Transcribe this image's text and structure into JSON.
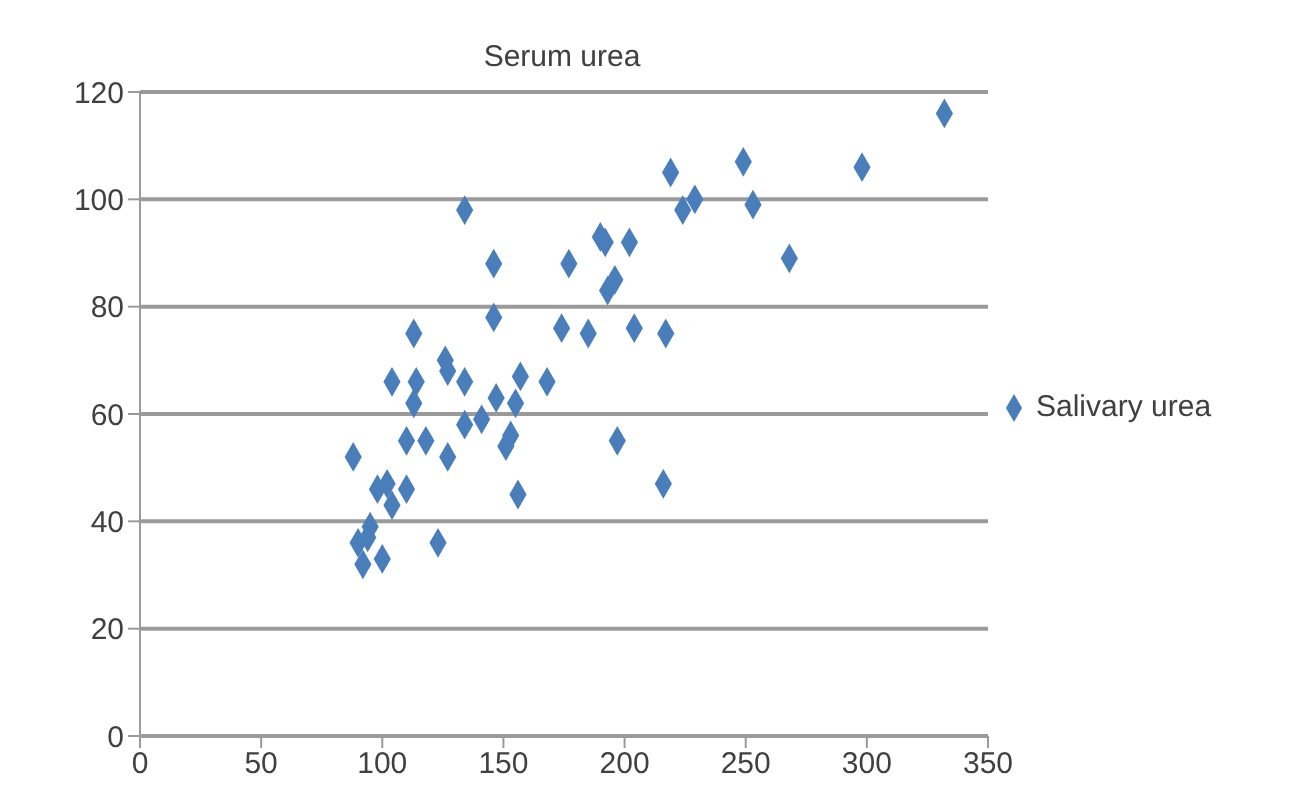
{
  "chart_data": {
    "type": "scatter",
    "title": "Serum urea",
    "x": [
      332,
      298,
      249,
      253,
      229,
      224,
      219,
      268,
      217,
      216,
      204,
      202,
      197,
      190,
      192,
      196,
      193,
      185,
      177,
      174,
      168,
      157,
      156,
      153,
      151,
      155,
      147,
      141,
      134,
      134,
      146,
      146,
      134,
      126,
      127,
      127,
      118,
      123,
      113,
      114,
      113,
      104,
      110,
      110,
      104,
      102,
      88,
      90,
      94,
      95,
      92,
      100,
      98
    ],
    "series": [
      {
        "name": "Salivary urea",
        "color": "#4a7ebb",
        "values": [
          116,
          106,
          107,
          99,
          100,
          98,
          105,
          89,
          75,
          47,
          76,
          92,
          55,
          93,
          92,
          85,
          83,
          75,
          88,
          76,
          66,
          67,
          45,
          56,
          54,
          62,
          63,
          59,
          58,
          66,
          78,
          88,
          98,
          70,
          68,
          52,
          55,
          36,
          75,
          66,
          62,
          66,
          55,
          46,
          43,
          47,
          52,
          36,
          37,
          39,
          32,
          33,
          46
        ]
      }
    ],
    "xlim": [
      0,
      350
    ],
    "xticks": [
      0,
      50,
      100,
      150,
      200,
      250,
      300,
      350
    ],
    "ylim": [
      0,
      120
    ],
    "yticks": [
      0,
      20,
      40,
      60,
      80,
      100,
      120
    ],
    "grid": "y",
    "legend": "right",
    "marker": "diamond"
  }
}
